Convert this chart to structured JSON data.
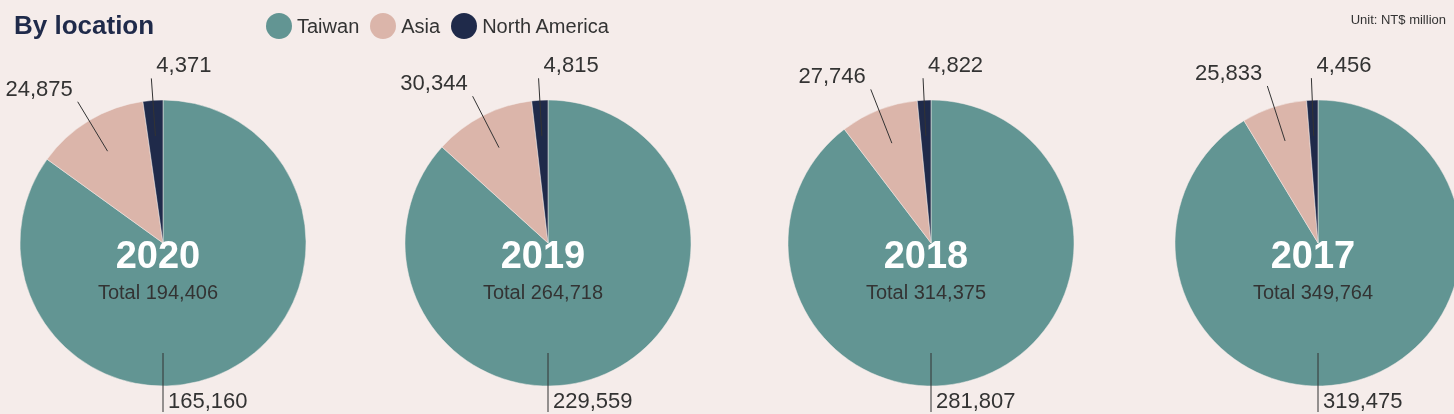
{
  "chart_data": [
    {
      "type": "pie",
      "title": "2020",
      "subtitle": "Total 194,406",
      "annotations": [
        "By location",
        "Unit: NT$ million"
      ],
      "legend": "top",
      "categories": [
        "Taiwan",
        "Asia",
        "North America"
      ],
      "values": [
        165160,
        24875,
        4371
      ],
      "value_labels": [
        "165,160",
        "24,875",
        "4,371"
      ],
      "colors": [
        "#629593",
        "#dbb5aa",
        "#1f2a4a"
      ]
    },
    {
      "type": "pie",
      "title": "2019",
      "subtitle": "Total 264,718",
      "categories": [
        null,
        null,
        null
      ],
      "values": [
        229559,
        30344,
        4815
      ],
      "value_labels": [
        "229,559",
        "30,344",
        "4,815"
      ],
      "colors": [
        "#629593",
        "#dbb5aa",
        "#1f2a4a"
      ]
    },
    {
      "type": "pie",
      "title": "2018",
      "subtitle": "Total 314,375",
      "categories": [
        null,
        null,
        null
      ],
      "values": [
        281807,
        27746,
        4822
      ],
      "value_labels": [
        "281,807",
        "27,746",
        "4,822"
      ],
      "colors": [
        "#629593",
        "#dbb5aa",
        "#1f2a4a"
      ]
    },
    {
      "type": "pie",
      "title": "2017",
      "subtitle": "Total 349,764",
      "categories": [
        null,
        null,
        null
      ],
      "values": [
        319475,
        25833,
        4456
      ],
      "value_labels": [
        "319,475",
        "25,833",
        "4,456"
      ],
      "colors": [
        "#629593",
        "#dbb5aa",
        "#1f2a4a"
      ]
    }
  ]
}
